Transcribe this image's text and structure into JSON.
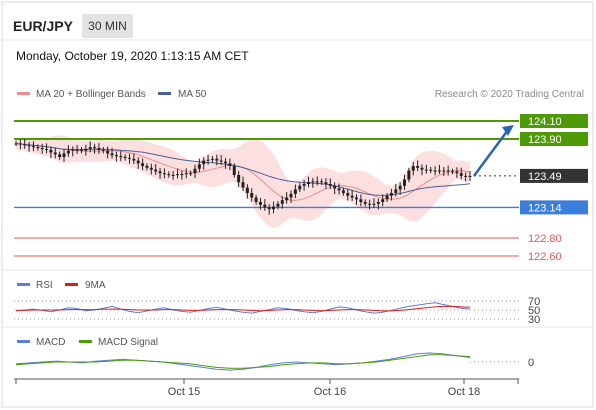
{
  "header": {
    "pair": "EUR/JPY",
    "timeframe": "30 MIN",
    "datetime": "Monday, October 19, 2020 1:13:15 AM CET"
  },
  "legend": {
    "ma20": "MA 20 + Bollinger Bands",
    "ma50": "MA 50",
    "source": "Research © 2020 Trading Central",
    "rsi": "RSI",
    "rsi_ma": "9MA",
    "macd": "MACD",
    "macd_signal": "MACD Signal"
  },
  "colors": {
    "ma20": "#ee8c8c",
    "ma50": "#4a5f9a",
    "bollinger_fill": "#fbd9d9",
    "resistance": "#4e9a06",
    "current": "#333333",
    "pivot": "#3d7ddb",
    "support": "#e05a5a",
    "rsi": "#5a7fd6",
    "rsi_ma": "#d62020",
    "macd": "#5a7fd6",
    "macd_signal": "#4e9a06",
    "arrow": "#2a64b5"
  },
  "chart_data": [
    {
      "type": "candlestick",
      "title": "EUR/JPY 30 MIN",
      "x_tick_labels": [
        "Oct 15",
        "Oct 16",
        "Oct 18"
      ],
      "ylim": [
        122.5,
        124.2
      ],
      "close": [
        123.85,
        123.84,
        123.83,
        123.82,
        123.81,
        123.8,
        123.79,
        123.78,
        123.75,
        123.73,
        123.7,
        123.74,
        123.77,
        123.78,
        123.78,
        123.77,
        123.79,
        123.81,
        123.8,
        123.78,
        123.77,
        123.74,
        123.72,
        123.71,
        123.7,
        123.69,
        123.68,
        123.66,
        123.63,
        123.6,
        123.58,
        123.56,
        123.54,
        123.52,
        123.51,
        123.5,
        123.5,
        123.51,
        123.51,
        123.52,
        123.52,
        123.57,
        123.62,
        123.66,
        123.67,
        123.68,
        123.66,
        123.65,
        123.63,
        123.6,
        123.5,
        123.42,
        123.36,
        123.3,
        123.25,
        123.2,
        123.17,
        123.14,
        123.12,
        123.15,
        123.18,
        123.22,
        123.25,
        123.29,
        123.34,
        123.38,
        123.4,
        123.42,
        123.43,
        123.43,
        123.42,
        123.4,
        123.38,
        123.35,
        123.33,
        123.3,
        123.27,
        123.25,
        123.23,
        123.2,
        123.18,
        123.17,
        123.18,
        123.2,
        123.23,
        123.27,
        123.3,
        123.34,
        123.38,
        123.45,
        123.55,
        123.6,
        123.58,
        123.56,
        123.56,
        123.55,
        123.55,
        123.55,
        123.55,
        123.54,
        123.54,
        123.52,
        123.49,
        123.49,
        123.48
      ],
      "levels": [
        {
          "value": "124.10",
          "type": "resistance"
        },
        {
          "value": "123.90",
          "type": "resistance"
        },
        {
          "value": "123.49",
          "type": "current"
        },
        {
          "value": "123.14",
          "type": "pivot"
        },
        {
          "value": "122.80",
          "type": "support"
        },
        {
          "value": "122.60",
          "type": "support"
        }
      ],
      "projection": {
        "from": 123.49,
        "to": 124.1
      }
    },
    {
      "type": "line",
      "name": "RSI",
      "reference_levels": [
        "70",
        "50",
        "30"
      ],
      "series": [
        {
          "name": "RSI",
          "values": [
            48,
            50,
            52,
            49,
            46,
            50,
            55,
            53,
            48,
            50,
            54,
            58,
            52,
            47,
            44,
            48,
            52,
            55,
            50,
            47,
            45,
            49,
            53,
            56,
            52,
            48,
            45,
            43,
            47,
            51,
            55,
            53,
            49,
            46,
            44,
            47,
            52,
            57,
            55,
            50,
            46,
            43,
            45,
            49,
            54,
            58,
            61,
            64,
            66,
            62,
            58,
            54,
            52
          ]
        },
        {
          "name": "9MA",
          "values": [
            49,
            49,
            50,
            50,
            50,
            50,
            51,
            51,
            51,
            51,
            52,
            52,
            52,
            51,
            50,
            50,
            50,
            51,
            51,
            50,
            49,
            49,
            50,
            51,
            51,
            51,
            50,
            49,
            48,
            49,
            50,
            51,
            51,
            50,
            49,
            48,
            49,
            50,
            51,
            51,
            50,
            49,
            48,
            48,
            49,
            51,
            53,
            55,
            57,
            58,
            58,
            57,
            56
          ]
        }
      ]
    },
    {
      "type": "line",
      "name": "MACD",
      "reference_levels": [
        "0"
      ],
      "series": [
        {
          "name": "MACD",
          "values": [
            -0.02,
            -0.01,
            0.0,
            0.01,
            0.0,
            -0.01,
            0.01,
            0.02,
            0.03,
            0.02,
            0.01,
            0.0,
            -0.02,
            -0.04,
            -0.06,
            -0.08,
            -0.09,
            -0.08,
            -0.06,
            -0.03,
            -0.01,
            0.0,
            -0.01,
            -0.02,
            -0.03,
            -0.02,
            -0.01,
            0.01,
            0.03,
            0.06,
            0.09,
            0.1,
            0.09,
            0.07,
            0.05
          ]
        },
        {
          "name": "MACD Signal",
          "values": [
            -0.03,
            -0.02,
            -0.01,
            0.0,
            0.0,
            0.0,
            0.0,
            0.01,
            0.02,
            0.02,
            0.01,
            0.0,
            -0.01,
            -0.02,
            -0.04,
            -0.06,
            -0.07,
            -0.07,
            -0.06,
            -0.05,
            -0.03,
            -0.02,
            -0.01,
            -0.01,
            -0.02,
            -0.02,
            -0.01,
            0.0,
            0.02,
            0.04,
            0.06,
            0.08,
            0.08,
            0.07,
            0.06
          ]
        }
      ]
    }
  ]
}
